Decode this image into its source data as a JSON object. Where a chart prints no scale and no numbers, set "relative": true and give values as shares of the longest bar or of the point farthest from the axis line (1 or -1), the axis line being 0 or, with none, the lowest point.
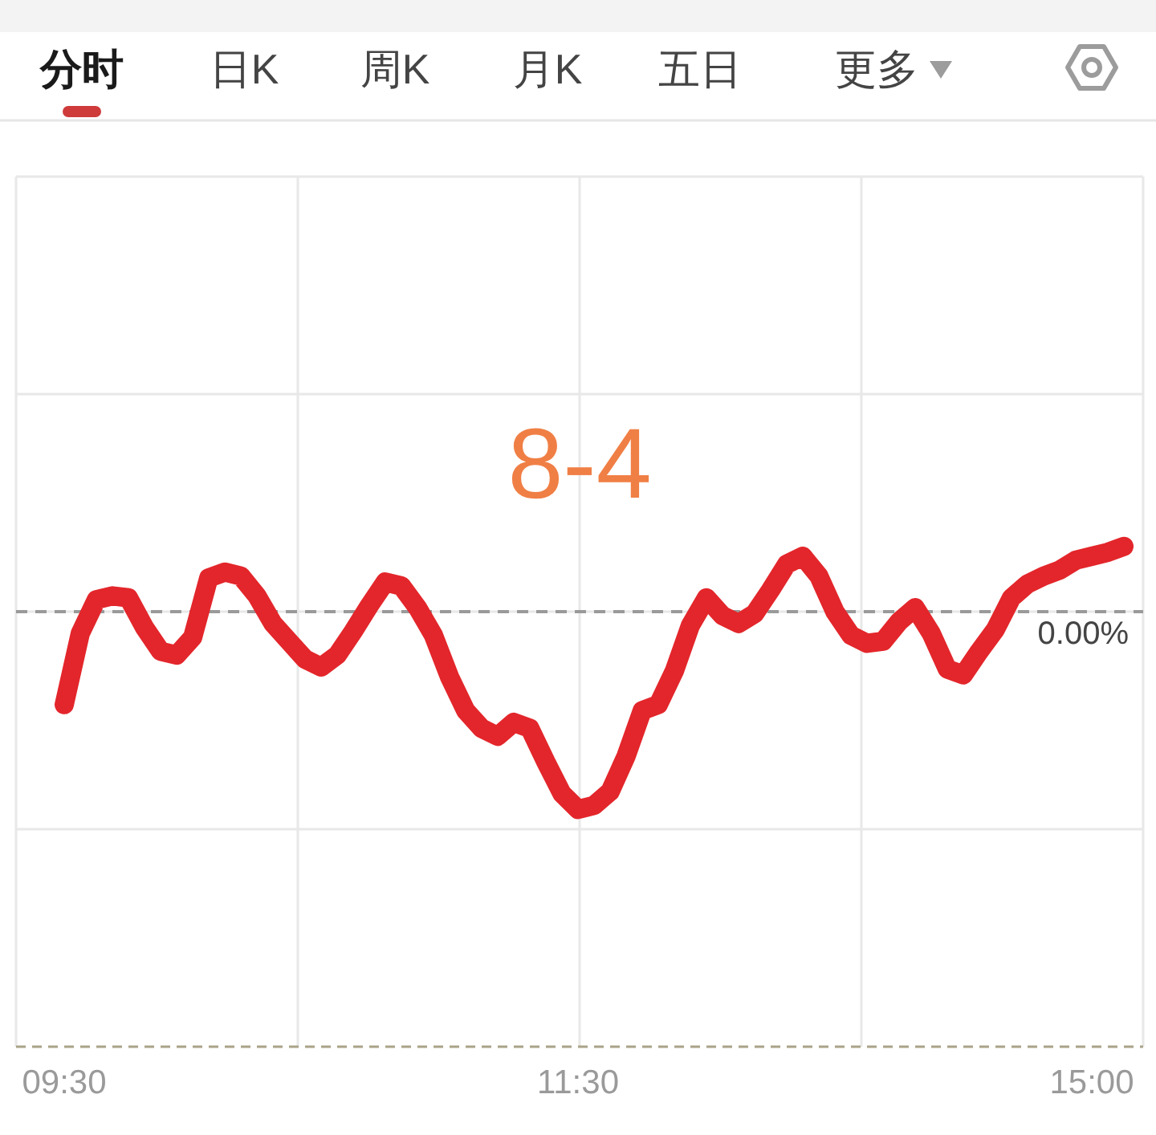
{
  "chart_data": {
    "type": "line",
    "title": "8-4",
    "annotations": [
      "分时",
      "日K",
      "周K",
      "月K",
      "五日",
      "更多"
    ],
    "categories": [
      "09:30",
      null,
      null,
      null,
      null,
      null,
      null,
      null,
      null,
      null,
      null,
      null,
      null,
      null,
      null,
      null,
      null,
      null,
      null,
      null,
      null,
      null,
      null,
      null,
      null,
      null,
      null,
      null,
      null,
      null,
      null,
      null,
      "11:30",
      null,
      null,
      null,
      null,
      null,
      null,
      null,
      null,
      null,
      null,
      null,
      null,
      null,
      null,
      null,
      null,
      null,
      null,
      null,
      null,
      null,
      null,
      null,
      null,
      null,
      null,
      null,
      null,
      null,
      null,
      null,
      "15:00",
      null,
      null
    ],
    "series": [
      {
        "color": "#e3262b",
        "values": [
          -0.47,
          -0.11,
          0.06,
          0.08,
          0.07,
          -0.08,
          -0.2,
          -0.22,
          -0.13,
          0.17,
          0.2,
          0.18,
          0.08,
          -0.06,
          -0.15,
          -0.24,
          -0.28,
          -0.22,
          -0.1,
          0.03,
          0.15,
          0.13,
          0.02,
          -0.12,
          -0.33,
          -0.5,
          -0.59,
          -0.63,
          -0.56,
          -0.59,
          -0.76,
          -0.92,
          -1,
          -0.98,
          -0.91,
          -0.73,
          -0.5,
          -0.47,
          -0.3,
          -0.07,
          0.07,
          -0.02,
          -0.06,
          -0.01,
          0.11,
          0.24,
          0.28,
          0.18,
          0,
          -0.12,
          -0.16,
          -0.15,
          -0.05,
          0.02,
          -0.11,
          -0.29,
          -0.32,
          -0.2,
          -0.09,
          0.07,
          0.14,
          0.18,
          0.21,
          0.26,
          0.28,
          0.3,
          0.33
        ]
      }
    ],
    "relative": true,
    "grid": true,
    "ref_lines": [
      {
        "axis": "y",
        "value": 0,
        "label": "0.00%",
        "color": "#9a9a9a",
        "line_style": "dashed"
      }
    ]
  }
}
